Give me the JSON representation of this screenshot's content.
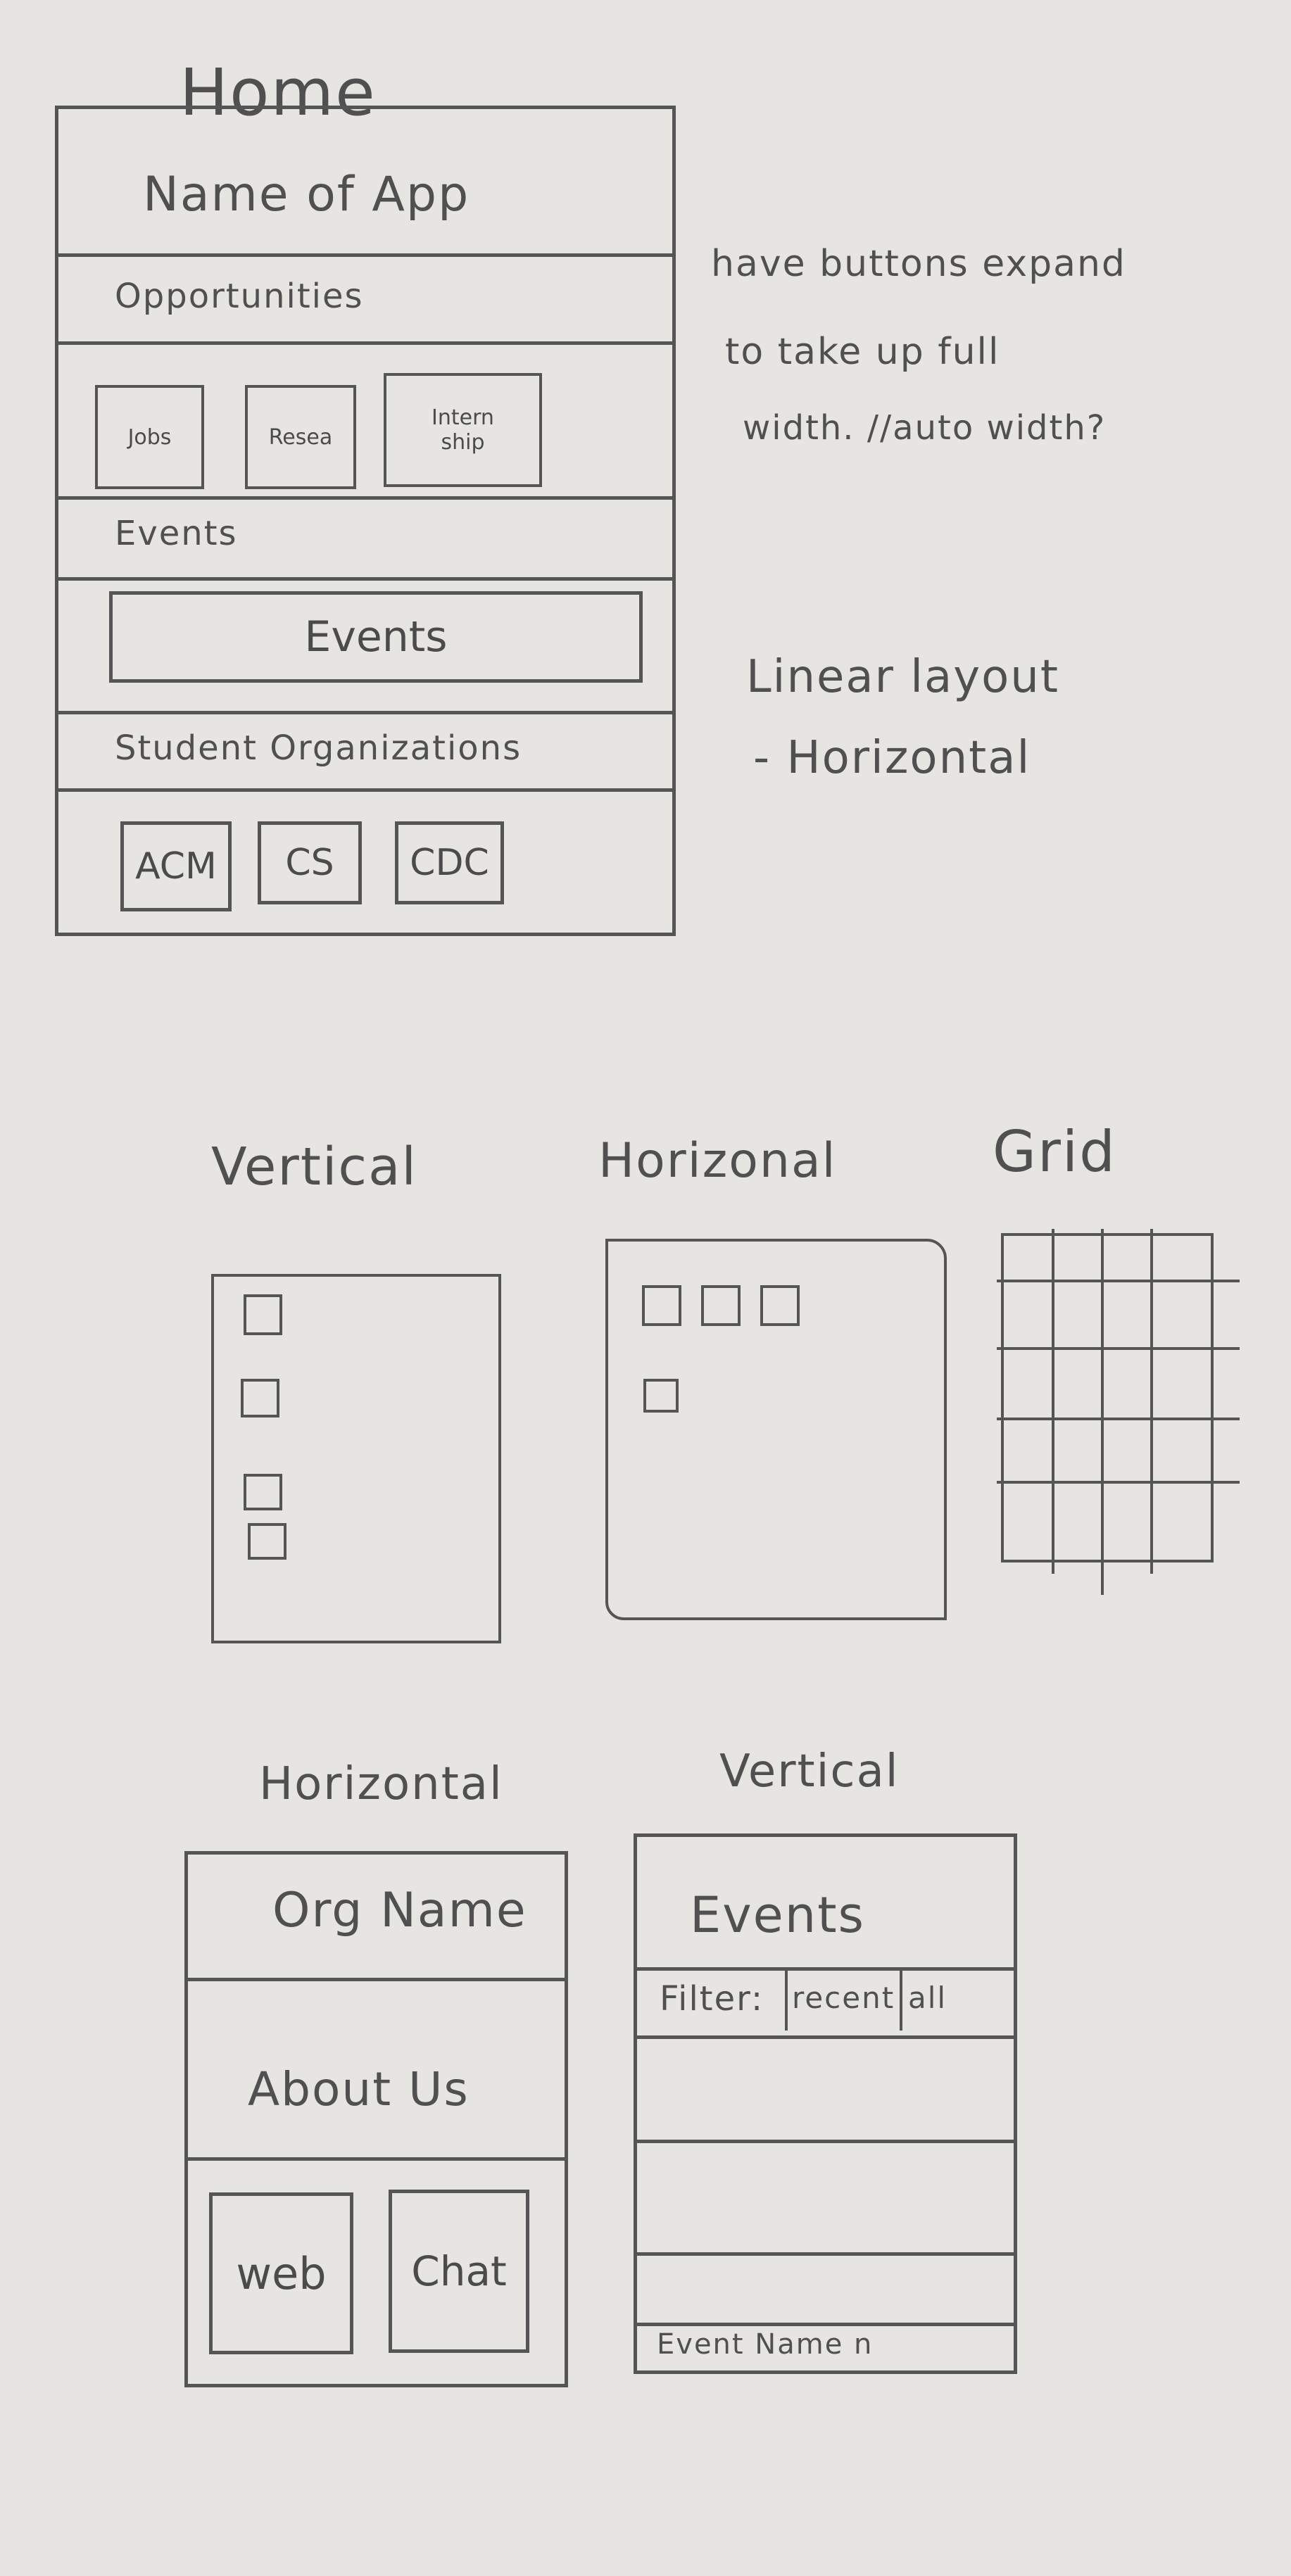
{
  "home": {
    "page_label": "Home",
    "app_name": "Name of App",
    "opportunities": {
      "heading": "Opportunities",
      "buttons": [
        "Jobs",
        "Resea",
        "Intern ship"
      ]
    },
    "events": {
      "heading": "Events",
      "button": "Events"
    },
    "student_orgs": {
      "heading": "Student Organizations",
      "buttons": [
        "ACM",
        "CS",
        "CDC"
      ]
    }
  },
  "notes": {
    "buttons_line1": "have buttons expand",
    "buttons_line2": "to take up full",
    "buttons_line3": "width. //auto width?",
    "layout_line1": "Linear layout",
    "layout_line2": "- Horizontal"
  },
  "layouts": {
    "vertical": "Vertical",
    "horizontal": "Horizonal",
    "grid": "Grid"
  },
  "org_screen": {
    "layout_label": "Horizontal",
    "name": "Org Name",
    "about": "About Us",
    "buttons": [
      "web",
      "Chat"
    ]
  },
  "events_screen": {
    "layout_label": "Vertical",
    "title": "Events",
    "filter_label": "Filter:",
    "filter_options": [
      "recent",
      "all"
    ],
    "last_item": "Event Name n"
  }
}
